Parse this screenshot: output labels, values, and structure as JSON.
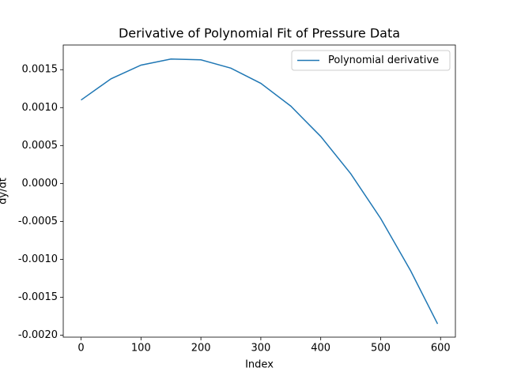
{
  "chart_data": {
    "type": "line",
    "title": "Derivative of Polynomial Fit of Pressure Data",
    "x_label": "Index",
    "y_label": "dy/dt",
    "x": [
      0,
      50,
      100,
      150,
      200,
      250,
      300,
      350,
      400,
      450,
      500,
      550,
      595
    ],
    "series": [
      {
        "name": "Polynomial derivative",
        "color": "#1f77b4",
        "values": [
          0.0011,
          0.00138,
          0.00156,
          0.00164,
          0.00163,
          0.00152,
          0.00132,
          0.00102,
          0.00062,
          0.00013,
          -0.00046,
          -0.00115,
          -0.00185
        ]
      }
    ],
    "xlim": [
      -29.75,
      624.75
    ],
    "xticks": [
      0,
      100,
      200,
      300,
      400,
      500,
      600
    ],
    "ylim": [
      -0.002025,
      0.001825
    ],
    "yticks": [
      {
        "value": -0.002,
        "label": "-0.0020"
      },
      -0.0015,
      {
        "value": -0.001,
        "label": "-0.0010"
      },
      -0.0005,
      {
        "value": 0,
        "label": "0.0000"
      },
      0.0005,
      {
        "value": 0.001,
        "label": "0.0010"
      },
      0.0015
    ],
    "legend": "upper right",
    "grid": false
  }
}
